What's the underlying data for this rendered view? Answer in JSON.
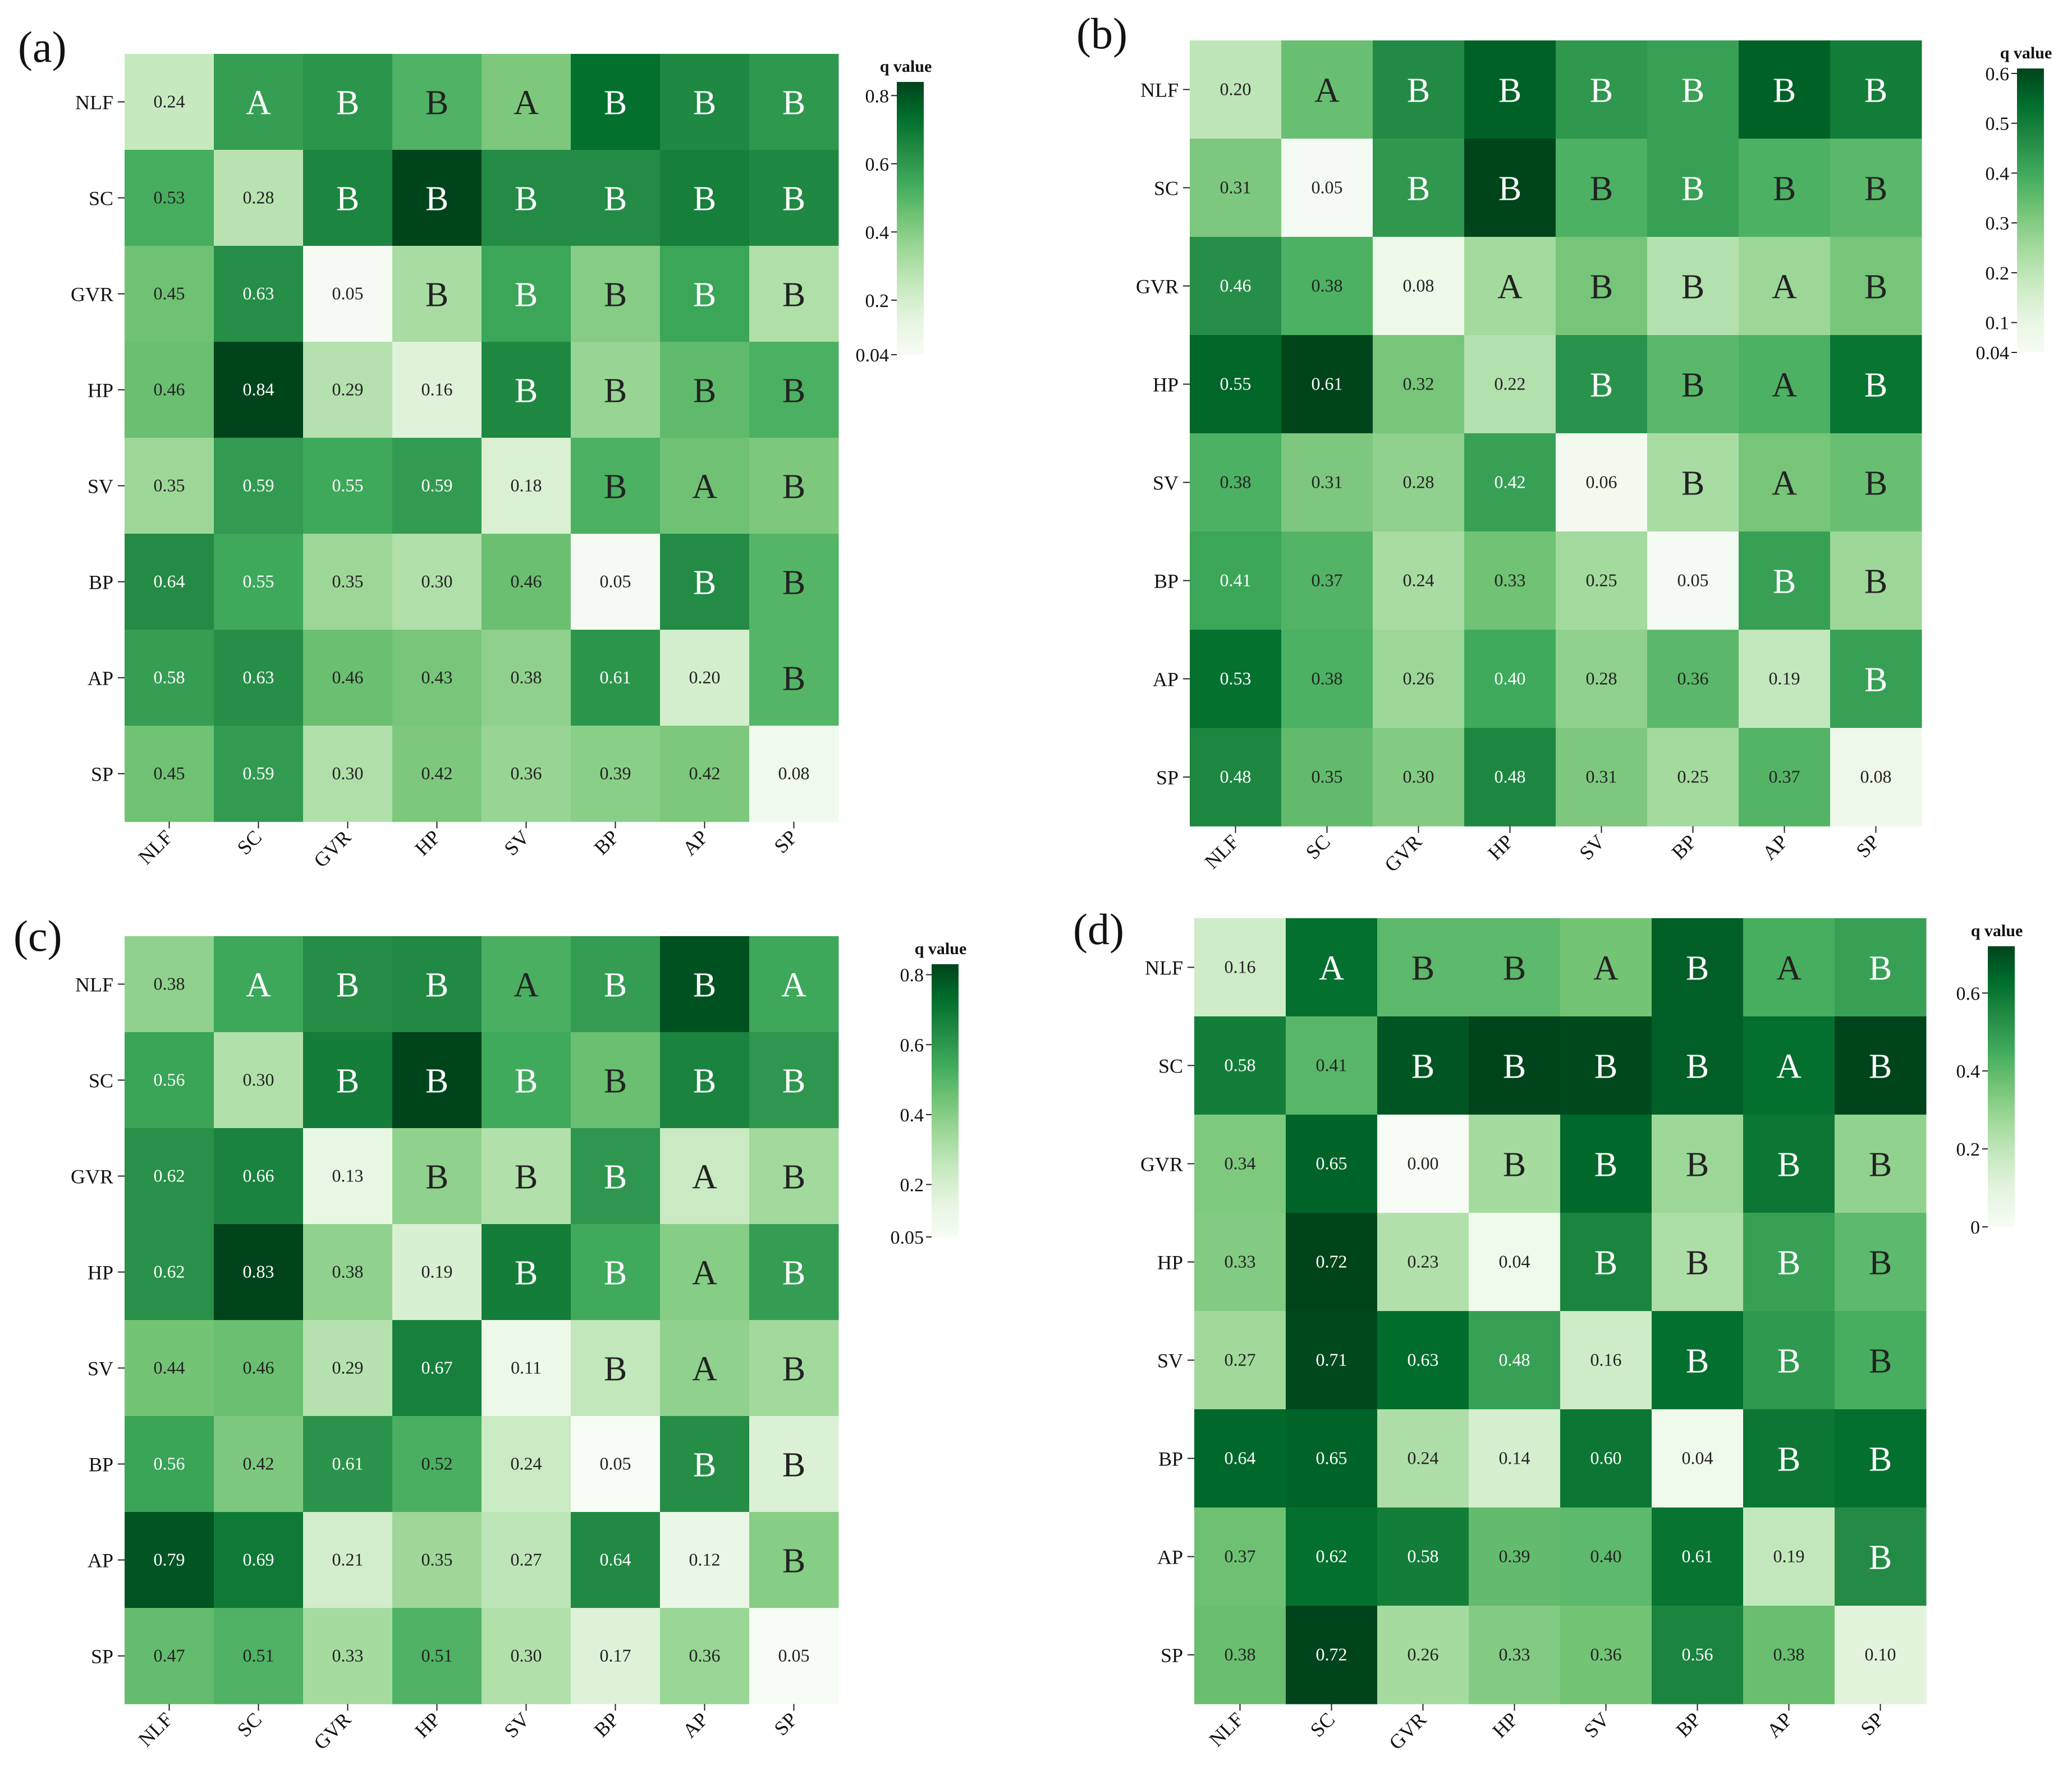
{
  "figure": {
    "panels": [
      {
        "id": "a",
        "label": "(a)",
        "colorbar": {
          "title": "q value",
          "ticks": [
            "0.8",
            "0.6",
            "0.4",
            "0.2",
            "0.04"
          ]
        }
      },
      {
        "id": "b",
        "label": "(b)",
        "colorbar": {
          "title": "q value",
          "ticks": [
            "0.6",
            "0.5",
            "0.4",
            "0.3",
            "0.2",
            "0.1",
            "0.04"
          ]
        }
      },
      {
        "id": "c",
        "label": "(c)",
        "colorbar": {
          "title": "q value",
          "ticks": [
            "0.8",
            "0.6",
            "0.4",
            "0.2",
            "0.05"
          ]
        }
      },
      {
        "id": "d",
        "label": "(d)",
        "colorbar": {
          "title": "q value",
          "ticks": [
            "0.6",
            "0.4",
            "0.2",
            "0"
          ]
        }
      }
    ]
  },
  "chart_data": [
    {
      "type": "heatmap",
      "panel": "(a)",
      "colorbar_label": "q value",
      "vmin": 0.04,
      "vmax": 0.84,
      "colorbar_ticks": [
        0.8,
        0.6,
        0.4,
        0.2,
        0.04
      ],
      "rows": [
        "NLF",
        "SC",
        "GVR",
        "HP",
        "SV",
        "BP",
        "AP",
        "SP"
      ],
      "cols": [
        "NLF",
        "SC",
        "GVR",
        "HP",
        "SV",
        "BP",
        "AP",
        "SP"
      ],
      "values": [
        [
          0.24,
          0.58,
          0.61,
          0.51,
          0.42,
          0.73,
          0.65,
          0.6
        ],
        [
          0.53,
          0.28,
          0.66,
          0.84,
          0.64,
          0.64,
          0.68,
          0.65
        ],
        [
          0.45,
          0.63,
          0.05,
          0.32,
          0.56,
          0.4,
          0.56,
          0.3
        ],
        [
          0.46,
          0.84,
          0.29,
          0.16,
          0.65,
          0.36,
          0.48,
          0.52
        ],
        [
          0.35,
          0.59,
          0.55,
          0.59,
          0.18,
          0.52,
          0.45,
          0.42
        ],
        [
          0.64,
          0.55,
          0.35,
          0.3,
          0.46,
          0.05,
          0.64,
          0.5
        ],
        [
          0.58,
          0.63,
          0.46,
          0.43,
          0.38,
          0.61,
          0.2,
          0.5
        ],
        [
          0.45,
          0.59,
          0.3,
          0.42,
          0.36,
          0.39,
          0.42,
          0.08
        ]
      ],
      "cell_labels": [
        [
          "0.24",
          "A",
          "B",
          "B",
          "A",
          "B",
          "B",
          "B"
        ],
        [
          "0.53",
          "0.28",
          "B",
          "B",
          "B",
          "B",
          "B",
          "B"
        ],
        [
          "0.45",
          "0.63",
          "0.05",
          "B",
          "B",
          "B",
          "B",
          "B"
        ],
        [
          "0.46",
          "0.84",
          "0.29",
          "0.16",
          "B",
          "B",
          "B",
          "B"
        ],
        [
          "0.35",
          "0.59",
          "0.55",
          "0.59",
          "0.18",
          "B",
          "A",
          "B"
        ],
        [
          "0.64",
          "0.55",
          "0.35",
          "0.30",
          "0.46",
          "0.05",
          "B",
          "B"
        ],
        [
          "0.58",
          "0.63",
          "0.46",
          "0.43",
          "0.38",
          "0.61",
          "0.20",
          "B"
        ],
        [
          "0.45",
          "0.59",
          "0.30",
          "0.42",
          "0.36",
          "0.39",
          "0.42",
          "0.08"
        ]
      ]
    },
    {
      "type": "heatmap",
      "panel": "(b)",
      "colorbar_label": "q value",
      "vmin": 0.04,
      "vmax": 0.61,
      "colorbar_ticks": [
        0.6,
        0.5,
        0.4,
        0.3,
        0.2,
        0.1,
        0.04
      ],
      "rows": [
        "NLF",
        "SC",
        "GVR",
        "HP",
        "SV",
        "BP",
        "AP",
        "SP"
      ],
      "cols": [
        "NLF",
        "SC",
        "GVR",
        "HP",
        "SV",
        "BP",
        "AP",
        "SP"
      ],
      "values": [
        [
          0.2,
          0.34,
          0.47,
          0.56,
          0.44,
          0.42,
          0.56,
          0.5
        ],
        [
          0.31,
          0.05,
          0.44,
          0.61,
          0.38,
          0.42,
          0.38,
          0.36
        ],
        [
          0.46,
          0.38,
          0.08,
          0.25,
          0.32,
          0.22,
          0.26,
          0.32
        ],
        [
          0.55,
          0.61,
          0.32,
          0.22,
          0.45,
          0.36,
          0.38,
          0.52
        ],
        [
          0.38,
          0.31,
          0.28,
          0.42,
          0.06,
          0.24,
          0.32,
          0.34
        ],
        [
          0.41,
          0.37,
          0.24,
          0.33,
          0.25,
          0.05,
          0.42,
          0.26
        ],
        [
          0.53,
          0.38,
          0.26,
          0.4,
          0.28,
          0.36,
          0.19,
          0.42
        ],
        [
          0.48,
          0.35,
          0.3,
          0.48,
          0.31,
          0.25,
          0.37,
          0.08
        ]
      ],
      "cell_labels": [
        [
          "0.20",
          "A",
          "B",
          "B",
          "B",
          "B",
          "B",
          "B"
        ],
        [
          "0.31",
          "0.05",
          "B",
          "B",
          "B",
          "B",
          "B",
          "B"
        ],
        [
          "0.46",
          "0.38",
          "0.08",
          "A",
          "B",
          "B",
          "A",
          "B"
        ],
        [
          "0.55",
          "0.61",
          "0.32",
          "0.22",
          "B",
          "B",
          "A",
          "B"
        ],
        [
          "0.38",
          "0.31",
          "0.28",
          "0.42",
          "0.06",
          "B",
          "A",
          "B"
        ],
        [
          "0.41",
          "0.37",
          "0.24",
          "0.33",
          "0.25",
          "0.05",
          "B",
          "B"
        ],
        [
          "0.53",
          "0.38",
          "0.26",
          "0.40",
          "0.28",
          "0.36",
          "0.19",
          "B"
        ],
        [
          "0.48",
          "0.35",
          "0.30",
          "0.48",
          "0.31",
          "0.25",
          "0.37",
          "0.08"
        ]
      ]
    },
    {
      "type": "heatmap",
      "panel": "(c)",
      "colorbar_label": "q value",
      "vmin": 0.05,
      "vmax": 0.83,
      "colorbar_ticks": [
        0.8,
        0.6,
        0.4,
        0.2,
        0.05
      ],
      "rows": [
        "NLF",
        "SC",
        "GVR",
        "HP",
        "SV",
        "BP",
        "AP",
        "SP"
      ],
      "cols": [
        "NLF",
        "SC",
        "GVR",
        "HP",
        "SV",
        "BP",
        "AP",
        "SP"
      ],
      "values": [
        [
          0.38,
          0.55,
          0.63,
          0.64,
          0.52,
          0.58,
          0.8,
          0.55
        ],
        [
          0.56,
          0.3,
          0.68,
          0.83,
          0.54,
          0.46,
          0.66,
          0.6
        ],
        [
          0.62,
          0.66,
          0.13,
          0.38,
          0.3,
          0.6,
          0.24,
          0.34
        ],
        [
          0.62,
          0.83,
          0.38,
          0.19,
          0.68,
          0.54,
          0.4,
          0.58
        ],
        [
          0.44,
          0.46,
          0.29,
          0.67,
          0.11,
          0.26,
          0.38,
          0.34
        ],
        [
          0.56,
          0.42,
          0.61,
          0.52,
          0.24,
          0.05,
          0.63,
          0.18
        ],
        [
          0.79,
          0.69,
          0.21,
          0.35,
          0.27,
          0.64,
          0.12,
          0.4
        ],
        [
          0.47,
          0.51,
          0.33,
          0.51,
          0.3,
          0.17,
          0.36,
          0.05
        ]
      ],
      "cell_labels": [
        [
          "0.38",
          "A",
          "B",
          "B",
          "A",
          "B",
          "B",
          "A"
        ],
        [
          "0.56",
          "0.30",
          "B",
          "B",
          "B",
          "B",
          "B",
          "B"
        ],
        [
          "0.62",
          "0.66",
          "0.13",
          "B",
          "B",
          "B",
          "A",
          "B"
        ],
        [
          "0.62",
          "0.83",
          "0.38",
          "0.19",
          "B",
          "B",
          "A",
          "B"
        ],
        [
          "0.44",
          "0.46",
          "0.29",
          "0.67",
          "0.11",
          "B",
          "A",
          "B"
        ],
        [
          "0.56",
          "0.42",
          "0.61",
          "0.52",
          "0.24",
          "0.05",
          "B",
          "B"
        ],
        [
          "0.79",
          "0.69",
          "0.21",
          "0.35",
          "0.27",
          "0.64",
          "0.12",
          "B"
        ],
        [
          "0.47",
          "0.51",
          "0.33",
          "0.51",
          "0.30",
          "0.17",
          "0.36",
          "0.05"
        ]
      ]
    },
    {
      "type": "heatmap",
      "panel": "(d)",
      "colorbar_label": "q value",
      "vmin": 0.0,
      "vmax": 0.72,
      "colorbar_ticks": [
        0.6,
        0.4,
        0.2,
        0
      ],
      "rows": [
        "NLF",
        "SC",
        "GVR",
        "HP",
        "SV",
        "BP",
        "AP",
        "SP"
      ],
      "cols": [
        "NLF",
        "SC",
        "GVR",
        "HP",
        "SV",
        "BP",
        "AP",
        "SP"
      ],
      "values": [
        [
          0.16,
          0.62,
          0.4,
          0.4,
          0.36,
          0.66,
          0.44,
          0.48
        ],
        [
          0.58,
          0.41,
          0.68,
          0.72,
          0.71,
          0.66,
          0.62,
          0.74
        ],
        [
          0.34,
          0.65,
          0.0,
          0.26,
          0.64,
          0.28,
          0.6,
          0.3
        ],
        [
          0.33,
          0.72,
          0.23,
          0.04,
          0.56,
          0.24,
          0.48,
          0.4
        ],
        [
          0.27,
          0.71,
          0.63,
          0.48,
          0.16,
          0.62,
          0.5,
          0.44
        ],
        [
          0.64,
          0.65,
          0.24,
          0.14,
          0.6,
          0.04,
          0.6,
          0.62
        ],
        [
          0.37,
          0.62,
          0.58,
          0.39,
          0.4,
          0.61,
          0.19,
          0.54
        ],
        [
          0.38,
          0.72,
          0.26,
          0.33,
          0.36,
          0.56,
          0.38,
          0.1
        ]
      ],
      "cell_labels": [
        [
          "0.16",
          "A",
          "B",
          "B",
          "A",
          "B",
          "A",
          "B"
        ],
        [
          "0.58",
          "0.41",
          "B",
          "B",
          "B",
          "B",
          "A",
          "B"
        ],
        [
          "0.34",
          "0.65",
          "0.00",
          "B",
          "B",
          "B",
          "B",
          "B"
        ],
        [
          "0.33",
          "0.72",
          "0.23",
          "0.04",
          "B",
          "B",
          "B",
          "B"
        ],
        [
          "0.27",
          "0.71",
          "0.63",
          "0.48",
          "0.16",
          "B",
          "B",
          "B"
        ],
        [
          "0.64",
          "0.65",
          "0.24",
          "0.14",
          "0.60",
          "0.04",
          "B",
          "B"
        ],
        [
          "0.37",
          "0.62",
          "0.58",
          "0.39",
          "0.40",
          "0.61",
          "0.19",
          "B"
        ],
        [
          "0.38",
          "0.72",
          "0.26",
          "0.33",
          "0.36",
          "0.56",
          "0.38",
          "0.10"
        ]
      ]
    }
  ]
}
